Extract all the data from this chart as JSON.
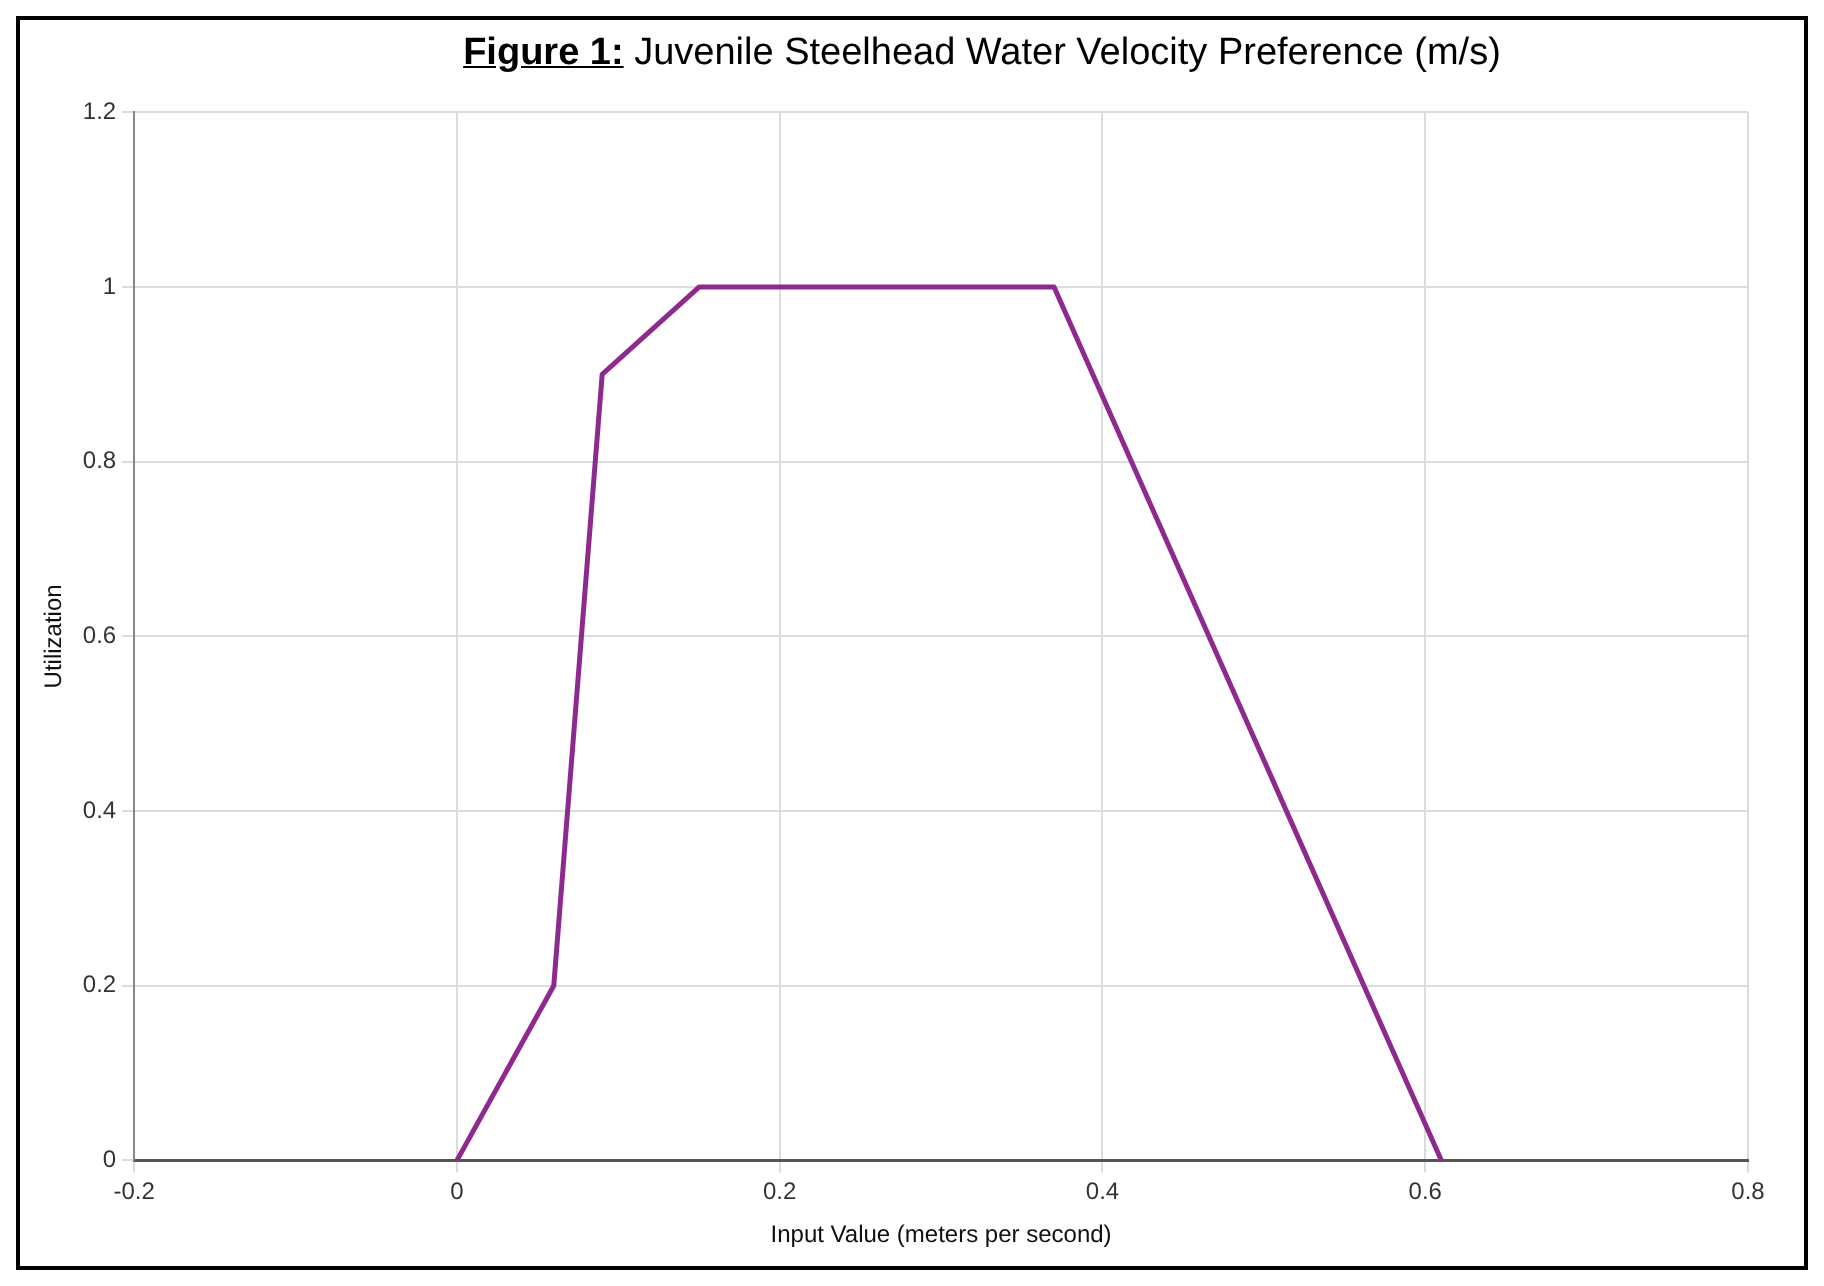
{
  "chart_data": {
    "type": "line",
    "title": "Figure 1: Juvenile Steelhead Water Velocity Preference (m/s)",
    "xlabel": "Input Value (meters per second)",
    "ylabel": "Utilization",
    "series": [
      {
        "color": "#8e2a8e",
        "x": [
          0,
          0.06,
          0.09,
          0.15,
          0.37,
          0.61
        ],
        "values": [
          0,
          0.2,
          0.9,
          1,
          1,
          0
        ]
      }
    ],
    "xlim": [
      -0.2,
      0.8
    ],
    "xticks": [
      -0.2,
      0,
      0.2,
      0.4,
      0.6,
      0.8
    ],
    "ylim": [
      0,
      1.2
    ],
    "yticks": [
      0,
      0.2,
      0.4,
      0.6,
      0.8,
      1,
      1.2
    ],
    "grid": true,
    "legend": false,
    "marker": "none",
    "line_style": "solid"
  }
}
